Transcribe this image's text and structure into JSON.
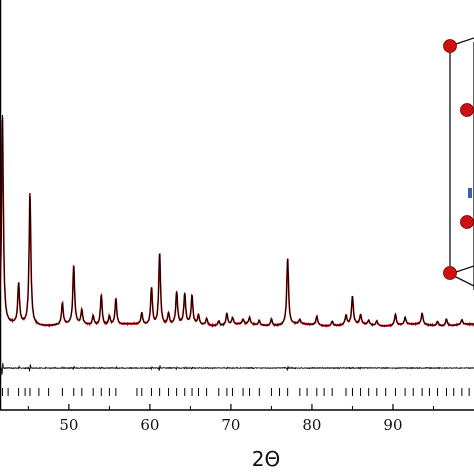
{
  "chart_data": {
    "type": "line",
    "title": "",
    "xlabel": "2Θ",
    "ylabel": "",
    "xlim": [
      41.5,
      100.0
    ],
    "x_ticks": [
      50,
      60,
      70,
      80,
      90
    ],
    "x_tick_labels": [
      "50",
      "60",
      "70",
      "80",
      "90"
    ],
    "grid": false,
    "legend": "none",
    "colors": {
      "observed": "#c00000",
      "calculated": "#000000",
      "difference": "#000000",
      "bragg_ticks": "#000000",
      "atom": "#cc1111"
    },
    "peaks_2theta": [
      41.8,
      43.8,
      45.2,
      49.2,
      50.6,
      51.6,
      53.0,
      54.0,
      55.0,
      55.8,
      59.0,
      60.2,
      61.2,
      62.3,
      63.3,
      64.3,
      65.2,
      66.0,
      67.0,
      68.5,
      69.5,
      70.2,
      71.5,
      72.3,
      73.5,
      75.0,
      77.0,
      78.5,
      80.6,
      82.5,
      84.2,
      85.0,
      86.0,
      87.0,
      88.0,
      90.3,
      91.5,
      93.6,
      95.5,
      96.6,
      98.5
    ],
    "peak_intensities": [
      0.92,
      0.17,
      0.56,
      0.09,
      0.25,
      0.06,
      0.04,
      0.13,
      0.04,
      0.11,
      0.05,
      0.16,
      0.31,
      0.05,
      0.14,
      0.13,
      0.12,
      0.04,
      0.03,
      0.02,
      0.05,
      0.03,
      0.02,
      0.03,
      0.02,
      0.03,
      0.29,
      0.02,
      0.04,
      0.02,
      0.04,
      0.12,
      0.04,
      0.02,
      0.02,
      0.05,
      0.03,
      0.05,
      0.02,
      0.03,
      0.02
    ],
    "bragg_reflections_2theta": [
      41.8,
      42.5,
      43.8,
      44.6,
      45.2,
      46.3,
      47.5,
      49.2,
      50.6,
      51.6,
      53.0,
      54.0,
      55.0,
      55.8,
      58.4,
      59.0,
      60.2,
      61.2,
      62.3,
      63.3,
      64.3,
      65.2,
      66.0,
      67.0,
      68.5,
      69.5,
      70.2,
      71.5,
      72.3,
      73.5,
      75.0,
      76.0,
      77.0,
      78.5,
      79.4,
      80.6,
      81.5,
      82.5,
      84.2,
      85.0,
      86.0,
      87.0,
      88.0,
      89.1,
      90.3,
      91.5,
      92.5,
      93.6,
      94.5,
      95.5,
      96.6,
      97.5,
      98.5,
      99.4
    ]
  }
}
